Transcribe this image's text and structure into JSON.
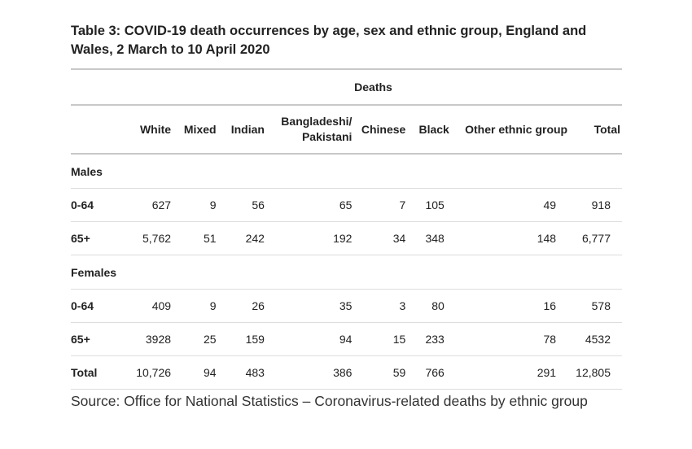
{
  "title": "Table 3: COVID-19 death occurrences by age, sex and ethnic group, England and Wales, 2 March to 10 April 2020",
  "table": {
    "group_header": "Deaths",
    "columns": {
      "white": "White",
      "mixed": "Mixed",
      "indian": "Indian",
      "bp_line1": "Bangladeshi/",
      "bp_line2": "Pakistani",
      "chinese": "Chinese",
      "black": "Black",
      "other": "Other ethnic group",
      "total": "Total"
    },
    "males": {
      "label": "Males",
      "age_0_64": {
        "label": "0-64",
        "white": "627",
        "mixed": "9",
        "indian": "56",
        "bangladeshi_pakistani": "65",
        "chinese": "7",
        "black": "105",
        "other": "49",
        "total": "918"
      },
      "age_65_plus": {
        "label": "65+",
        "white": "5,762",
        "mixed": "51",
        "indian": "242",
        "bangladeshi_pakistani": "192",
        "chinese": "34",
        "black": "348",
        "other": "148",
        "total": "6,777"
      }
    },
    "females": {
      "label": "Females",
      "age_0_64": {
        "label": "0-64",
        "white": "409",
        "mixed": "9",
        "indian": "26",
        "bangladeshi_pakistani": "35",
        "chinese": "3",
        "black": "80",
        "other": "16",
        "total": "578"
      },
      "age_65_plus": {
        "label": "65+",
        "white": "3928",
        "mixed": "25",
        "indian": "159",
        "bangladeshi_pakistani": "94",
        "chinese": "15",
        "black": "233",
        "other": "78",
        "total": "4532"
      }
    },
    "total": {
      "label": "Total",
      "white": "10,726",
      "mixed": "94",
      "indian": "483",
      "bangladeshi_pakistani": "386",
      "chinese": "59",
      "black": "766",
      "other": "291",
      "total": "12,805"
    }
  },
  "source": "Source: Office for National Statistics – Coronavirus-related deaths by ethnic group"
}
